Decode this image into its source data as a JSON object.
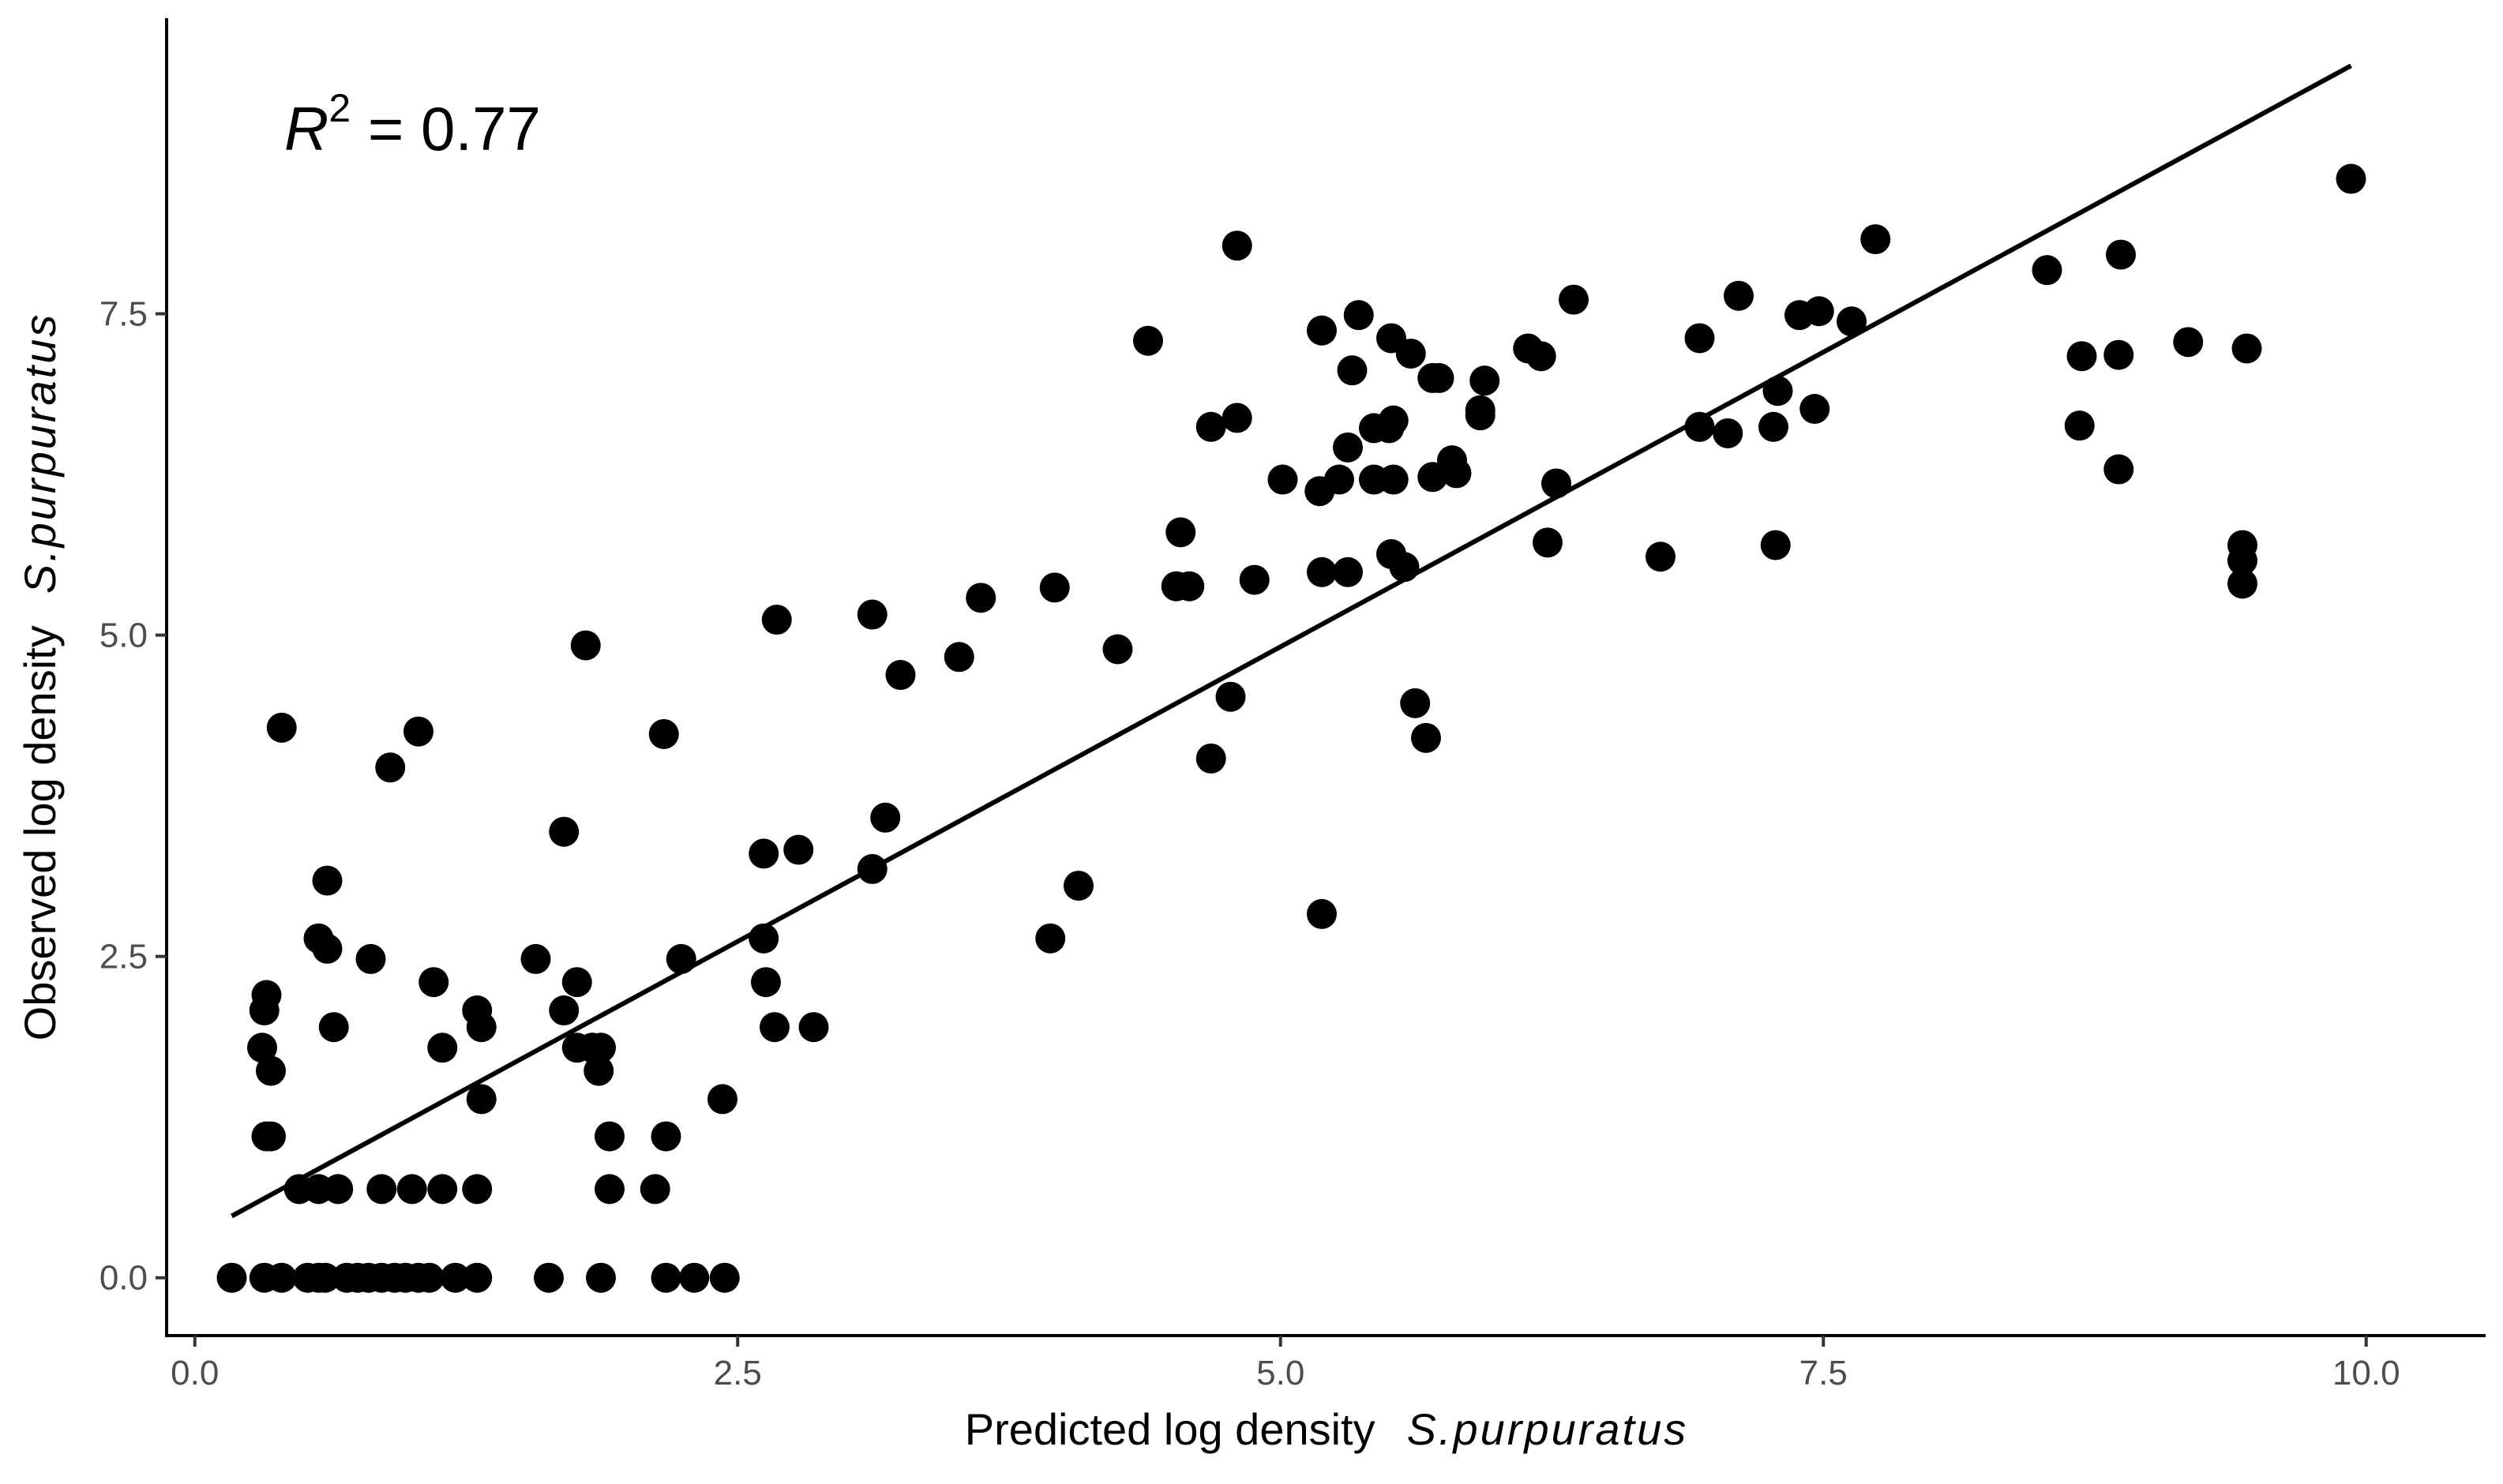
{
  "chart_data": {
    "type": "scatter",
    "title": "",
    "xlabel": "Predicted log density",
    "xlabel_italic": "S.purpuratus",
    "ylabel": "Observed log density",
    "ylabel_italic": "S.purpuratus",
    "annotation": {
      "symbol": "R",
      "superscript": "2",
      "text": " = 0.77"
    },
    "xlim": [
      -0.13,
      10.55
    ],
    "ylim": [
      -0.45,
      9.8
    ],
    "xticks": [
      "0.0",
      "2.5",
      "5.0",
      "7.5",
      "10.0"
    ],
    "yticks": [
      "0.0",
      "2.5",
      "5.0",
      "7.5"
    ],
    "grid": false,
    "legend": "none",
    "point_color": "#000000",
    "fit_line": {
      "x": [
        0.17,
        9.93
      ],
      "y": [
        0.48,
        9.43
      ]
    },
    "points": [
      [
        0.17,
        0.0
      ],
      [
        0.32,
        0.0
      ],
      [
        0.4,
        0.0
      ],
      [
        0.52,
        0.0
      ],
      [
        0.57,
        0.0
      ],
      [
        0.6,
        0.0
      ],
      [
        0.7,
        0.0
      ],
      [
        0.75,
        0.0
      ],
      [
        0.8,
        0.0
      ],
      [
        0.86,
        0.0
      ],
      [
        0.92,
        0.0
      ],
      [
        0.97,
        0.0
      ],
      [
        1.03,
        0.0
      ],
      [
        1.08,
        0.0
      ],
      [
        1.2,
        0.0
      ],
      [
        1.3,
        0.0
      ],
      [
        1.63,
        0.0
      ],
      [
        1.87,
        0.0
      ],
      [
        2.17,
        0.0
      ],
      [
        2.3,
        0.0
      ],
      [
        2.44,
        0.0
      ],
      [
        0.48,
        0.69
      ],
      [
        0.57,
        0.69
      ],
      [
        0.66,
        0.69
      ],
      [
        0.86,
        0.69
      ],
      [
        1.0,
        0.69
      ],
      [
        1.14,
        0.69
      ],
      [
        1.3,
        0.69
      ],
      [
        1.91,
        0.69
      ],
      [
        2.12,
        0.69
      ],
      [
        0.33,
        1.1
      ],
      [
        0.35,
        1.1
      ],
      [
        1.91,
        1.1
      ],
      [
        2.17,
        1.1
      ],
      [
        2.43,
        1.39
      ],
      [
        1.32,
        1.39
      ],
      [
        0.31,
        1.79
      ],
      [
        0.35,
        1.61
      ],
      [
        1.14,
        1.79
      ],
      [
        1.76,
        1.79
      ],
      [
        1.83,
        1.79
      ],
      [
        1.87,
        1.79
      ],
      [
        1.86,
        1.61
      ],
      [
        0.32,
        2.08
      ],
      [
        0.33,
        2.2
      ],
      [
        0.64,
        1.95
      ],
      [
        1.3,
        2.08
      ],
      [
        1.32,
        1.95
      ],
      [
        1.7,
        2.08
      ],
      [
        2.67,
        1.95
      ],
      [
        2.85,
        1.95
      ],
      [
        2.63,
        2.3
      ],
      [
        0.57,
        2.64
      ],
      [
        0.61,
        2.56
      ],
      [
        0.81,
        2.48
      ],
      [
        1.1,
        2.3
      ],
      [
        1.57,
        2.48
      ],
      [
        1.76,
        2.3
      ],
      [
        2.24,
        2.48
      ],
      [
        2.62,
        2.64
      ],
      [
        3.94,
        2.64
      ],
      [
        0.61,
        3.09
      ],
      [
        2.62,
        3.3
      ],
      [
        2.78,
        3.33
      ],
      [
        3.12,
        3.18
      ],
      [
        3.18,
        3.58
      ],
      [
        4.07,
        3.05
      ],
      [
        0.9,
        3.97
      ],
      [
        1.03,
        4.25
      ],
      [
        0.4,
        4.28
      ],
      [
        1.7,
        3.47
      ],
      [
        2.16,
        4.23
      ],
      [
        1.8,
        4.92
      ],
      [
        2.68,
        5.12
      ],
      [
        3.12,
        5.16
      ],
      [
        3.25,
        4.69
      ],
      [
        3.52,
        4.83
      ],
      [
        3.62,
        5.29
      ],
      [
        3.96,
        5.37
      ],
      [
        4.25,
        4.89
      ],
      [
        4.39,
        7.29
      ],
      [
        4.52,
        5.38
      ],
      [
        4.54,
        5.8
      ],
      [
        4.58,
        5.38
      ],
      [
        4.68,
        4.04
      ],
      [
        4.68,
        6.62
      ],
      [
        4.77,
        4.52
      ],
      [
        4.8,
        6.69
      ],
      [
        4.8,
        8.03
      ],
      [
        4.88,
        5.43
      ],
      [
        5.01,
        6.21
      ],
      [
        5.18,
        6.12
      ],
      [
        5.19,
        5.49
      ],
      [
        5.19,
        7.37
      ],
      [
        5.19,
        2.83
      ],
      [
        5.27,
        6.21
      ],
      [
        5.31,
        6.46
      ],
      [
        5.31,
        5.49
      ],
      [
        5.33,
        7.06
      ],
      [
        5.36,
        7.49
      ],
      [
        5.43,
        6.21
      ],
      [
        5.43,
        6.61
      ],
      [
        5.5,
        6.61
      ],
      [
        5.51,
        7.31
      ],
      [
        5.52,
        6.67
      ],
      [
        5.52,
        6.21
      ],
      [
        5.51,
        5.63
      ],
      [
        5.57,
        5.53
      ],
      [
        5.6,
        7.19
      ],
      [
        5.62,
        4.47
      ],
      [
        5.67,
        4.2
      ],
      [
        5.7,
        6.23
      ],
      [
        5.7,
        7.0
      ],
      [
        5.73,
        7.0
      ],
      [
        5.79,
        6.36
      ],
      [
        5.81,
        6.26
      ],
      [
        5.92,
        6.71
      ],
      [
        5.92,
        6.75
      ],
      [
        5.94,
        6.98
      ],
      [
        6.14,
        7.23
      ],
      [
        6.2,
        7.17
      ],
      [
        6.23,
        5.72
      ],
      [
        6.27,
        6.18
      ],
      [
        6.35,
        7.61
      ],
      [
        6.75,
        5.61
      ],
      [
        6.93,
        6.62
      ],
      [
        6.93,
        7.31
      ],
      [
        7.06,
        6.57
      ],
      [
        7.11,
        7.64
      ],
      [
        7.27,
        6.62
      ],
      [
        7.28,
        5.7
      ],
      [
        7.29,
        6.9
      ],
      [
        7.39,
        7.49
      ],
      [
        7.46,
        6.76
      ],
      [
        7.48,
        7.52
      ],
      [
        7.63,
        7.44
      ],
      [
        7.74,
        8.08
      ],
      [
        8.53,
        7.84
      ],
      [
        8.68,
        6.63
      ],
      [
        8.69,
        7.17
      ],
      [
        8.86,
        7.18
      ],
      [
        8.86,
        6.29
      ],
      [
        8.87,
        7.96
      ],
      [
        9.18,
        7.28
      ],
      [
        9.43,
        5.7
      ],
      [
        9.43,
        5.58
      ],
      [
        9.43,
        5.4
      ],
      [
        9.45,
        7.23
      ],
      [
        9.93,
        8.55
      ]
    ]
  }
}
